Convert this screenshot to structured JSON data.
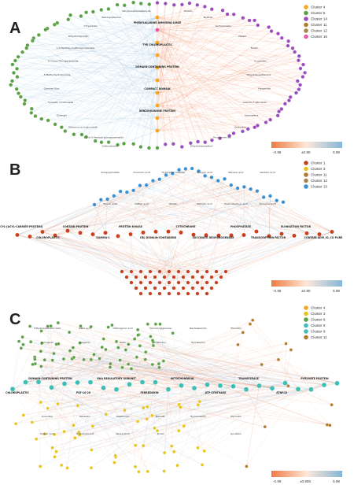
{
  "colors": {
    "positive_edge": "#f07a45",
    "negative_edge": "#86b6d6",
    "cluster_1": "#c8401e",
    "cluster_3": "#e6c419",
    "cluster_4": "#f5a623",
    "cluster_6": "#5aa045",
    "cluster_8": "#3bbfb7",
    "cluster_9": "#3bbfb7",
    "cluster_11": "#b07a2e",
    "cluster_12": "#a9864a",
    "cluster_13": "#3a8fd1",
    "cluster_14": "#9a4ebd",
    "cluster_16": "#e85aa9"
  },
  "panels": [
    {
      "letter": "A",
      "legend": [
        {
          "label": "Cluster 4",
          "color": "#f5a623"
        },
        {
          "label": "Cluster 6",
          "color": "#5aa045"
        },
        {
          "label": "Cluster 14",
          "color": "#9a4ebd"
        },
        {
          "label": "Cluster 11",
          "color": "#b07a2e"
        },
        {
          "label": "Cluster 12",
          "color": "#a9864a"
        },
        {
          "label": "Cluster 16",
          "color": "#e85aa9"
        }
      ],
      "colorbar_ticks": [
        "-0.98",
        "±0.90",
        "0.98"
      ],
      "hub_labels": [
        "PHENYLALANINE AMMONIA-LYASE",
        "TYR CHLOROPLASTIC",
        "DOMAIN-CONTAINING PROTEIN",
        "COMPACT DOMAIN",
        "BENZOQUINONE PROTEIN"
      ],
      "node_labels": [
        "Dihydroxybenzaldehyde",
        "Benzoyladenine",
        "Chrysoeriol",
        "Dihydromyricetin",
        "α-3-Hydroxy-3-ethoxypropionate",
        "D-Gluco-Glucopyranoside",
        "3-Methylhydroquinone",
        "Gamma-Gluc",
        "Cyanidin 3-rutinoside",
        "Galangin",
        "Tuberonic acid glucoside",
        "2,3-di-O-feruloyl-glucopyranoside",
        "Gallocatechin",
        "Tricetin",
        "Taxifolin",
        "Isorhamnetin",
        "Vitexin",
        "Fisetin",
        "Scopoletin",
        "Trihydroxyisoflavone",
        "Hesperidin",
        "Luteolin-7-glucoside",
        "Kaempferol",
        "Quercitrin",
        "Procyanidin B2",
        "Dihydrokaempferol"
      ]
    },
    {
      "letter": "B",
      "legend": [
        {
          "label": "Cluster 1",
          "color": "#c8401e"
        },
        {
          "label": "Cluster 3",
          "color": "#e6c419"
        },
        {
          "label": "Cluster 11",
          "color": "#b07a2e"
        },
        {
          "label": "Cluster 12",
          "color": "#a9864a"
        },
        {
          "label": "Cluster 13",
          "color": "#3a8fd1"
        }
      ],
      "colorbar_ticks": [
        "-0.98",
        "±0.90",
        "0.98"
      ],
      "hub_labels": [
        "ACYL-[ACYL-CARRIER-PROTEIN]",
        "CHLOROPLASTIC",
        "CONTAIN PROTEIN",
        "GAMMA-1",
        "PROTEIN KINASE",
        "CBL DOMAIN-CONTAINING",
        "CYTOCHROME",
        "SUCCINATE DEHYDROGENASE",
        "PHOSPHATASE",
        "TRANSCRIPTION FACTOR",
        "ELONGATION FACTOR",
        "CONTAIN ADM_01_CO PURE"
      ],
      "node_labels": [
        "Sinapoylmalate",
        "Coumaric acid",
        "Tryptophan betaine",
        "Syringic acid",
        "Benzoic acid",
        "Gentisic acid",
        "Ferulic acid",
        "Caffeic acid",
        "Vanillin",
        "Salicylic acid",
        "Protocatechuic acid",
        "Cinnamic acid"
      ]
    },
    {
      "letter": "C",
      "legend": [
        {
          "label": "Cluster 4",
          "color": "#f5a623"
        },
        {
          "label": "Cluster 3",
          "color": "#e6c419"
        },
        {
          "label": "Cluster 6",
          "color": "#5aa045"
        },
        {
          "label": "Cluster 8",
          "color": "#3bbfb7"
        },
        {
          "label": "Cluster 9",
          "color": "#3bbfb7"
        },
        {
          "label": "Cluster 11",
          "color": "#b07a2e"
        }
      ],
      "colorbar_ticks": [
        "-0.98",
        "±0.900",
        "0.98"
      ],
      "hub_labels": [
        "CHLOROPLASTIC",
        "DOMAIN-CONTAINING PROTEIN",
        "PSF-10-20",
        "RNA REGULATORY SUBUNIT",
        "FERREDOXIN",
        "MITOCHONDRIAL",
        "ATP SYNTHASE",
        "TRANSFERASE",
        "ATNFC8",
        "PYRUVATE PROTEIN"
      ],
      "node_labels": [
        "3-Hydroxybenzoic acid",
        "Gallic acid",
        "Chlorogenic acid",
        "Cinnamoylglucose",
        "Neohesperidin",
        "Phloretin",
        "Naringenin",
        "Apigenin",
        "Rutin",
        "Catechin",
        "Epicatechin",
        "Myricetin",
        "Quercetin",
        "Petunidin",
        "Delphinidin",
        "Malvidin",
        "Homoorientin",
        "Isovitexin",
        "Sinapic acid",
        "Hydroxytyrosol",
        "Resveratrol",
        "Piceid"
      ]
    }
  ]
}
